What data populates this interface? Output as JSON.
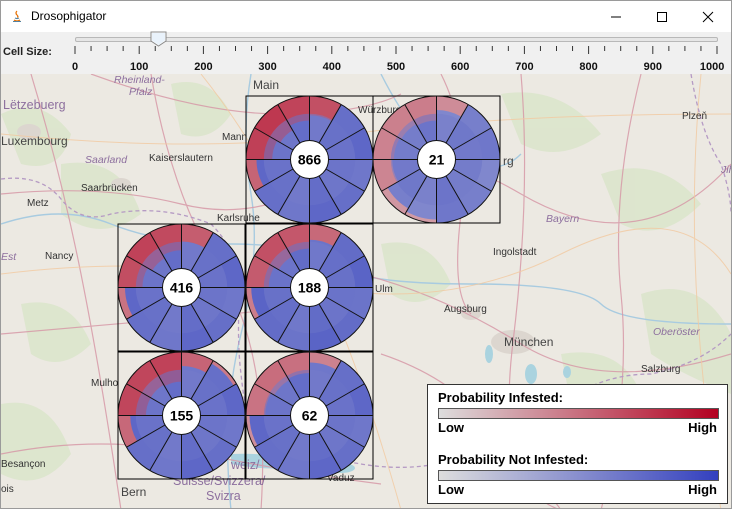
{
  "window": {
    "title": "Drosophigator",
    "minimize_icon": "minimize-icon",
    "maximize_icon": "maximize-icon",
    "close_icon": "close-icon"
  },
  "controls": {
    "cell_size_label": "Cell Size:",
    "slider": {
      "min": 0,
      "max": 1000,
      "value": 130
    },
    "tick_labels": [
      "0",
      "100",
      "200",
      "300",
      "400",
      "500",
      "600",
      "700",
      "800",
      "900",
      "1000"
    ]
  },
  "map": {
    "places": [
      {
        "label": "Main",
        "cls": "big"
      },
      {
        "label": "Würzburg",
        "cls": ""
      },
      {
        "label": "Rheinland-",
        "cls": "region"
      },
      {
        "label": "Pfalz",
        "cls": "region"
      },
      {
        "label": "Lëtzebuerg",
        "cls": "country"
      },
      {
        "label": "Luxembourg",
        "cls": "big"
      },
      {
        "label": "Saarland",
        "cls": "region"
      },
      {
        "label": "Kaiserslautern",
        "cls": ""
      },
      {
        "label": "Saarbrücken",
        "cls": ""
      },
      {
        "label": "Metz",
        "cls": ""
      },
      {
        "label": "Mann",
        "cls": ""
      },
      {
        "label": "Karlsruhe",
        "cls": ""
      },
      {
        "label": "Nancy",
        "cls": ""
      },
      {
        "label": "Est",
        "cls": "region"
      },
      {
        "label": "Ingolstadt",
        "cls": ""
      },
      {
        "label": "Bayern",
        "cls": "region"
      },
      {
        "label": "Ulm",
        "cls": ""
      },
      {
        "label": "Augsburg",
        "cls": ""
      },
      {
        "label": "München",
        "cls": "big"
      },
      {
        "label": "Oberöster",
        "cls": "region"
      },
      {
        "label": "Salzburg",
        "cls": ""
      },
      {
        "label": "Plzeň",
        "cls": ""
      },
      {
        "label": "Jih",
        "cls": "region"
      },
      {
        "label": "Mulho",
        "cls": ""
      },
      {
        "label": "Besançon",
        "cls": ""
      },
      {
        "label": "Bern",
        "cls": "big"
      },
      {
        "label": "Vaduz",
        "cls": ""
      },
      {
        "label": "weiz/",
        "cls": "country"
      },
      {
        "label": "Suisse/Svizzera/",
        "cls": "country"
      },
      {
        "label": "Svizra",
        "cls": "country"
      },
      {
        "label": "rg",
        "cls": "big"
      },
      {
        "label": "ois",
        "cls": ""
      }
    ]
  },
  "grid_cells": [
    {
      "count": "866"
    },
    {
      "count": "21"
    },
    {
      "count": "416"
    },
    {
      "count": "188"
    },
    {
      "count": "155"
    },
    {
      "count": "62"
    }
  ],
  "legend": {
    "infested_title": "Probability Infested:",
    "not_infested_title": "Probability Not Infested:",
    "low": "Low",
    "high": "High",
    "infested_colors": [
      "#dddddd",
      "#b30020"
    ],
    "not_infested_colors": [
      "#dddddd",
      "#3340bf"
    ]
  },
  "colors": {
    "infested_high": "#b30020",
    "not_infested_high": "#3340bf"
  }
}
